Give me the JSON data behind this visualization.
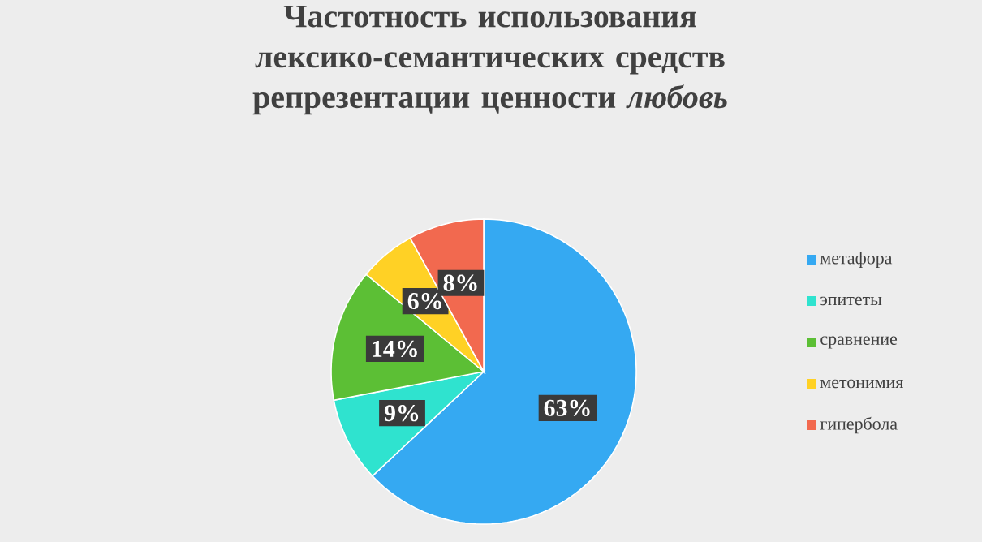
{
  "chart_data": {
    "type": "pie",
    "title": "Частотность использования лексико-семантических средств репрезентации ценности *любовь*",
    "categories": [
      "метафора",
      "эпитеты",
      "сравнение",
      "метонимия",
      "гипербола"
    ],
    "values": [
      63,
      9,
      14,
      6,
      8
    ],
    "value_labels": [
      "63%",
      "9%",
      "14%",
      "6%",
      "8%"
    ],
    "colors": [
      "#35a9f2",
      "#2fe3cf",
      "#5cbf35",
      "#ffd125",
      "#f2694f"
    ],
    "legend": "right"
  }
}
